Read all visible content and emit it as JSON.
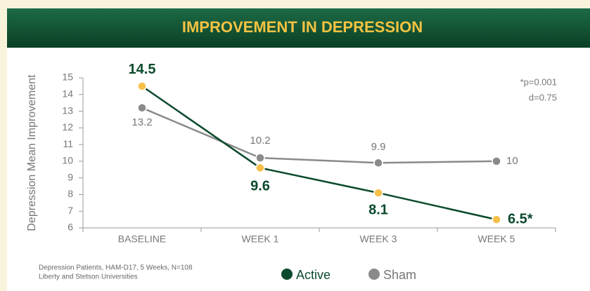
{
  "chart_data": {
    "type": "line",
    "title": "IMPROVEMENT IN DEPRESSION",
    "y_label": "Depression Mean Improvement",
    "categories": [
      "BASELINE",
      "WEEK 1",
      "WEEK 3",
      "WEEK 5"
    ],
    "series": [
      {
        "name": "Active",
        "color": "#0b4a2c",
        "marker_color": "#f7c04a",
        "values": [
          14.5,
          9.6,
          8.1,
          6.5
        ],
        "value_labels": [
          "14.5",
          "9.6",
          "8.1",
          "6.5*"
        ]
      },
      {
        "name": "Sham",
        "color": "#8a8a8a",
        "marker_color": "#8a8a8a",
        "values": [
          13.2,
          10.2,
          9.9,
          10
        ]
      }
    ],
    "ylim": [
      6,
      15
    ],
    "yticks": [
      6,
      7,
      8,
      9,
      10,
      11,
      12,
      13,
      14,
      15
    ],
    "annotation": [
      "*p=0.001",
      "d=0.75"
    ],
    "footnote": [
      "Depression Patients, HAM-D17, 5 Weeks, N=108",
      "Liberty and Stetson Universities"
    ]
  }
}
